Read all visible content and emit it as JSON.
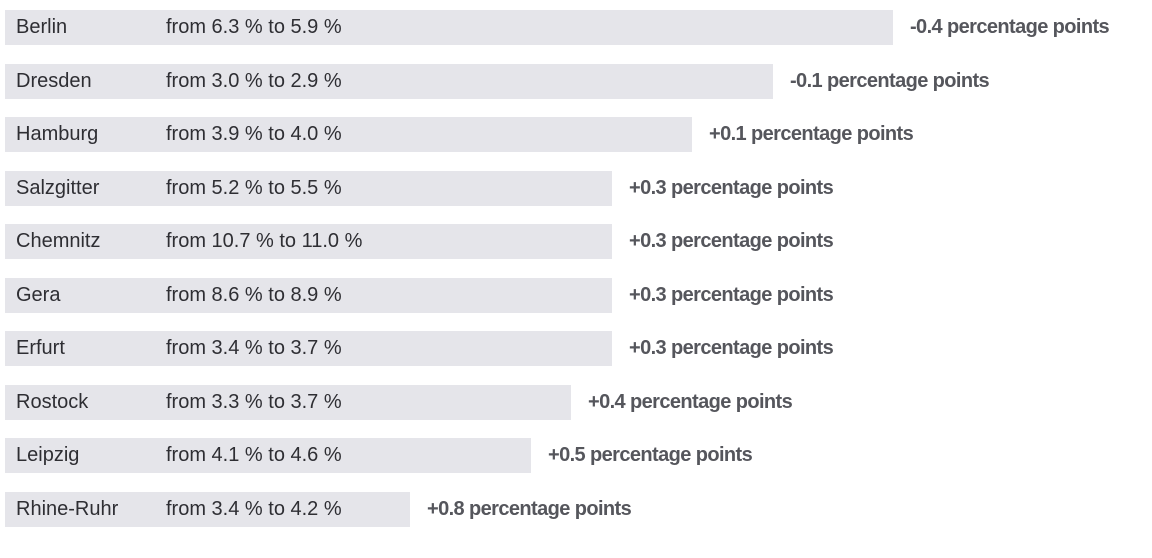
{
  "rows": [
    {
      "name": "Berlin",
      "detail": "from 6.3 % to 5.9 %",
      "change": "-0.4 percentage points"
    },
    {
      "name": "Dresden",
      "detail": "from 3.0 % to 2.9 %",
      "change": "-0.1 percentage points"
    },
    {
      "name": "Hamburg",
      "detail": "from 3.9 % to 4.0 %",
      "change": "+0.1 percentage points"
    },
    {
      "name": "Salzgitter",
      "detail": "from 5.2 % to 5.5 %",
      "change": "+0.3 percentage points"
    },
    {
      "name": "Chemnitz",
      "detail": "from 10.7 % to 11.0 %",
      "change": "+0.3 percentage points"
    },
    {
      "name": "Gera",
      "detail": "from 8.6 % to 8.9 %",
      "change": "+0.3 percentage points"
    },
    {
      "name": "Erfurt",
      "detail": "from 3.4 % to 3.7 %",
      "change": "+0.3 percentage points"
    },
    {
      "name": "Rostock",
      "detail": "from 3.3 % to 3.7 %",
      "change": "+0.4 percentage points"
    },
    {
      "name": "Leipzig",
      "detail": "from 4.1 % to 4.6 %",
      "change": "+0.5 percentage points"
    },
    {
      "name": "Rhine-Ruhr",
      "detail": "from 3.4 % to 4.2 %",
      "change": "+0.8 percentage points"
    }
  ]
}
